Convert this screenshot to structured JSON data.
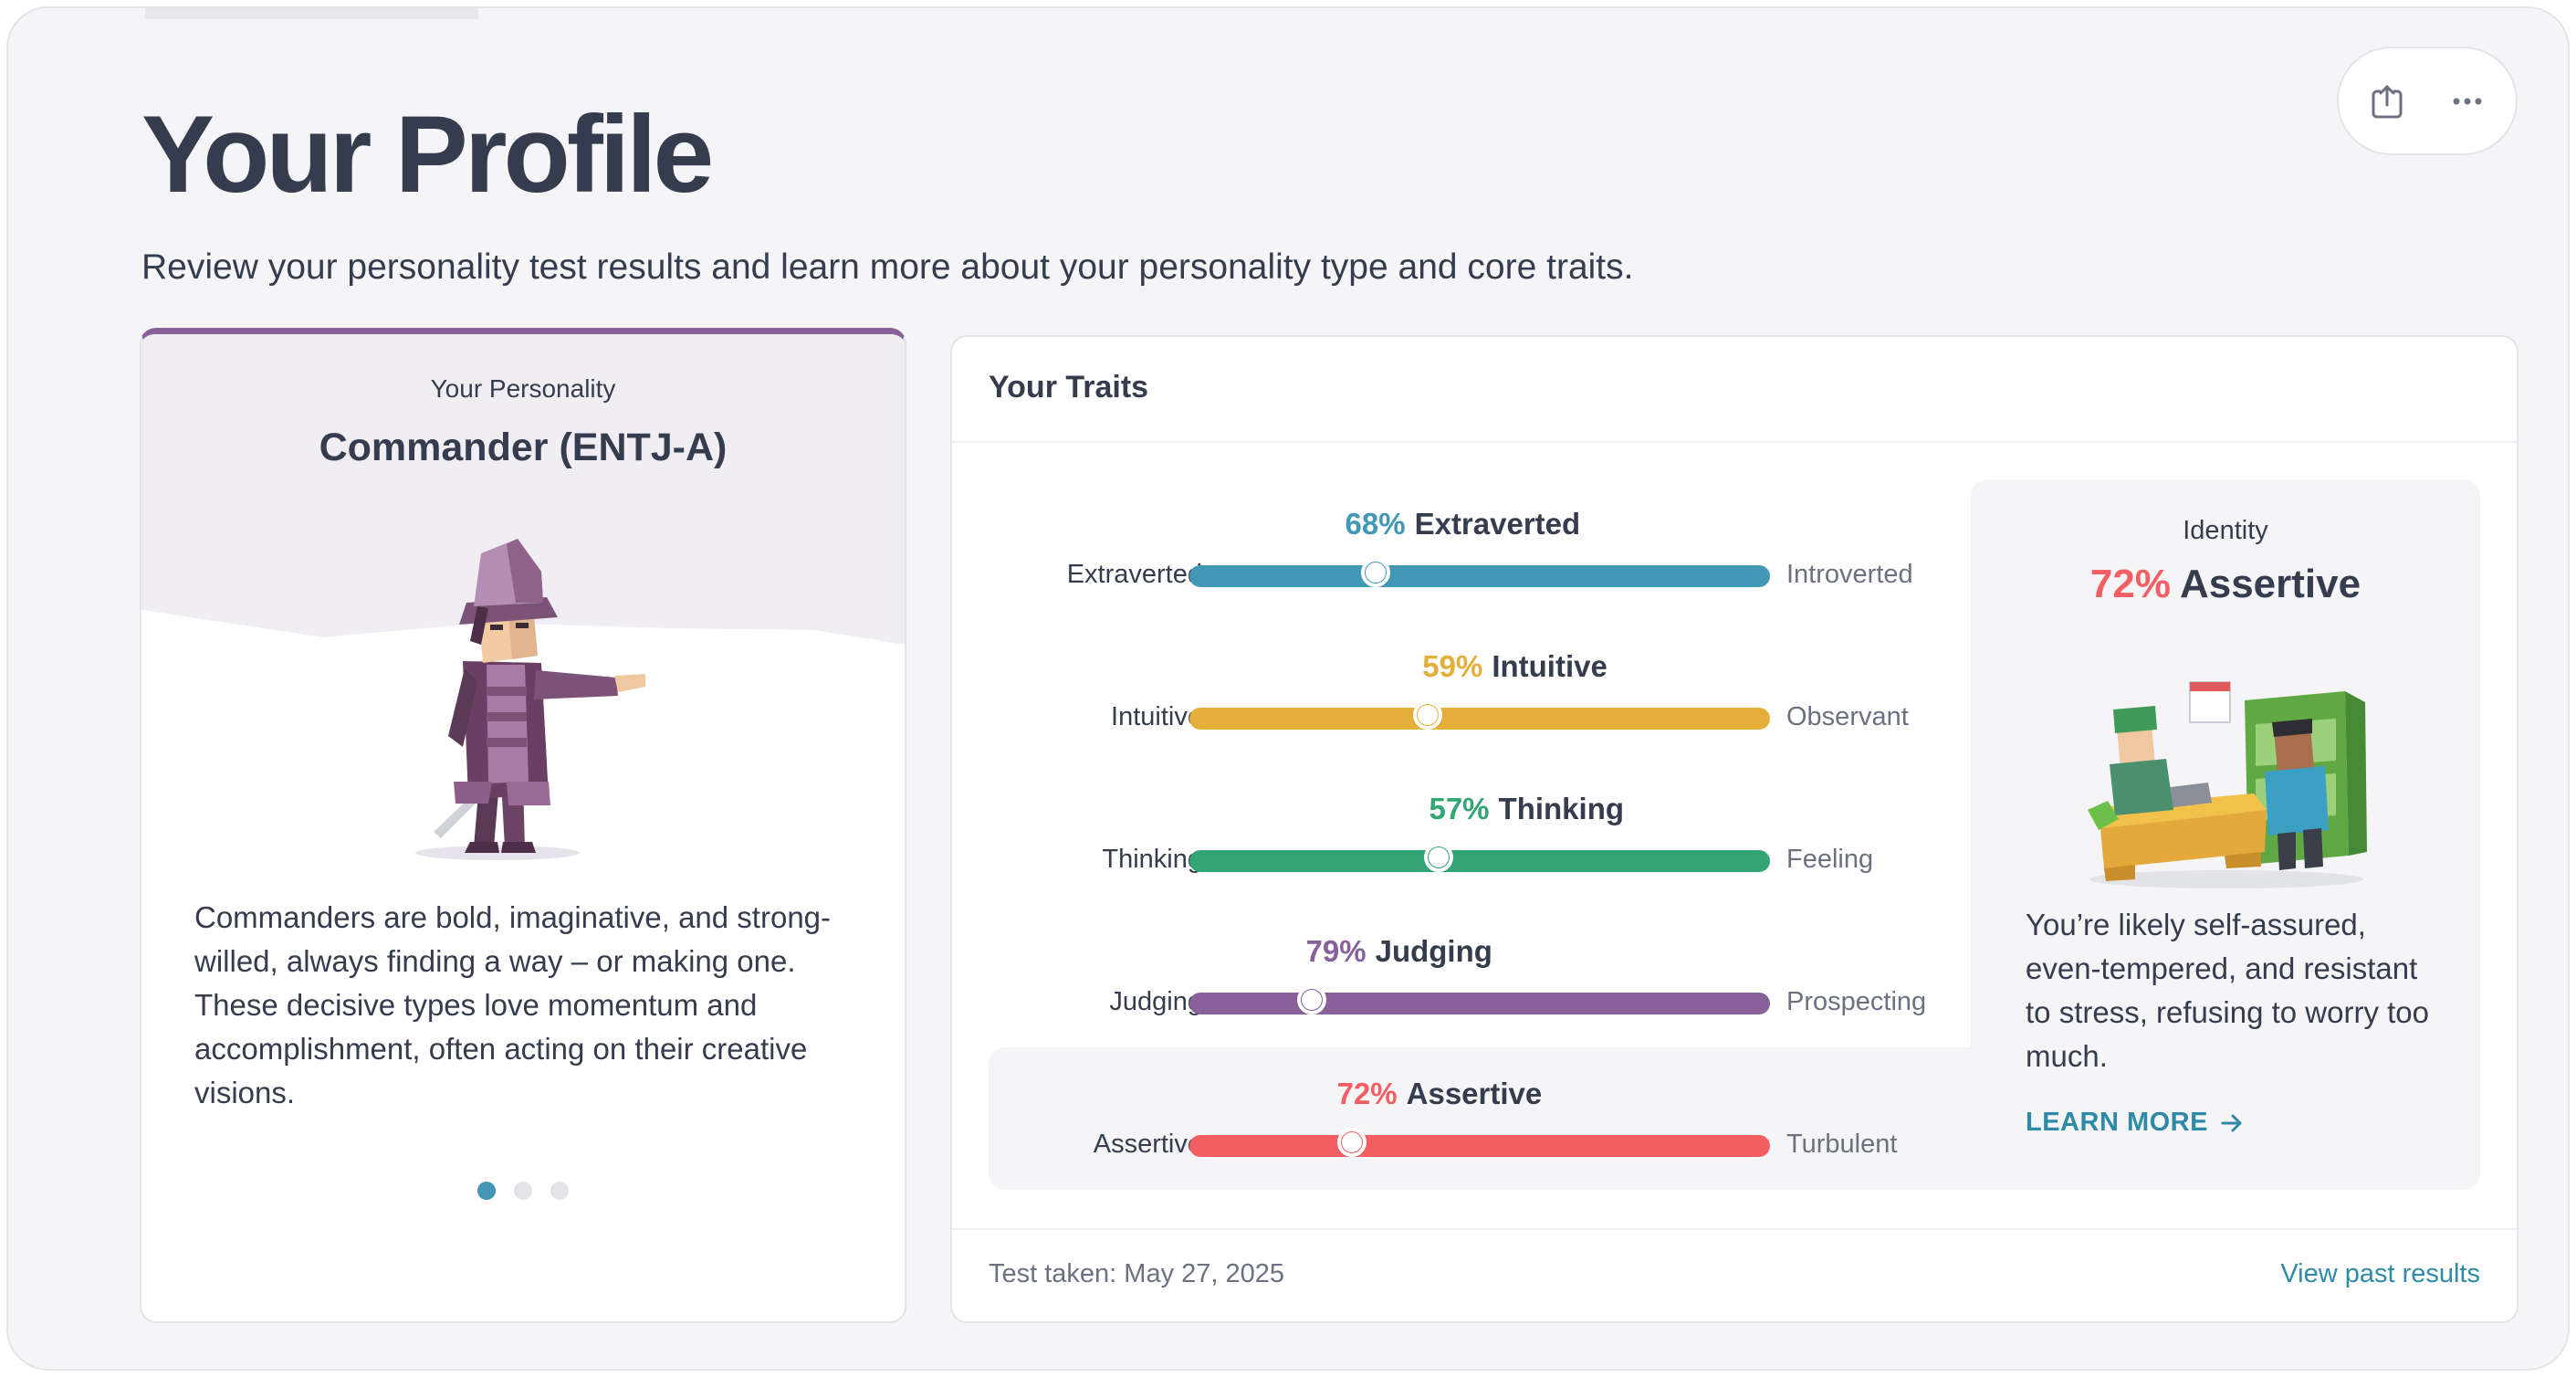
{
  "page": {
    "title": "Your Profile",
    "subtitle": "Review your personality test results and learn more about your personality type and core traits."
  },
  "actions": {
    "share_icon": "share-icon",
    "more_icon": "ellipsis-icon"
  },
  "personality": {
    "label": "Your Personality",
    "name": "Commander (ENTJ-A)",
    "description": "Commanders are bold, imaginative, and strong-willed, always finding a way – or making one. These decisive types love momentum and accomplishment, often acting on their creative visions.",
    "carousel": {
      "count": 3,
      "active_index": 0
    },
    "accent": "#88619a"
  },
  "traits": {
    "title": "Your Traits",
    "items": [
      {
        "percent": "68%",
        "name": "Extraverted",
        "left": "Extraverted",
        "right": "Introverted",
        "level": 0.32,
        "color": "#4298b4"
      },
      {
        "percent": "59%",
        "name": "Intuitive",
        "left": "Intuitive",
        "right": "Observant",
        "level": 0.41,
        "color": "#e4ae3a"
      },
      {
        "percent": "57%",
        "name": "Thinking",
        "left": "Thinking",
        "right": "Feeling",
        "level": 0.43,
        "color": "#33a474"
      },
      {
        "percent": "79%",
        "name": "Judging",
        "left": "Judging",
        "right": "Prospecting",
        "level": 0.21,
        "color": "#88619a"
      },
      {
        "percent": "72%",
        "name": "Assertive",
        "left": "Assertive",
        "right": "Turbulent",
        "level": 0.28,
        "color": "#f25e62"
      }
    ],
    "identity": {
      "label": "Identity",
      "percent": "72%",
      "name": "Assertive",
      "description": "You’re likely self-assured, even-tempered, and resistant to stress, refusing to worry too much.",
      "learn_more": "LEARN MORE",
      "color": "#f25e62"
    },
    "footer": {
      "test_taken": "Test taken: May 27, 2025",
      "view_past": "View past results"
    }
  }
}
